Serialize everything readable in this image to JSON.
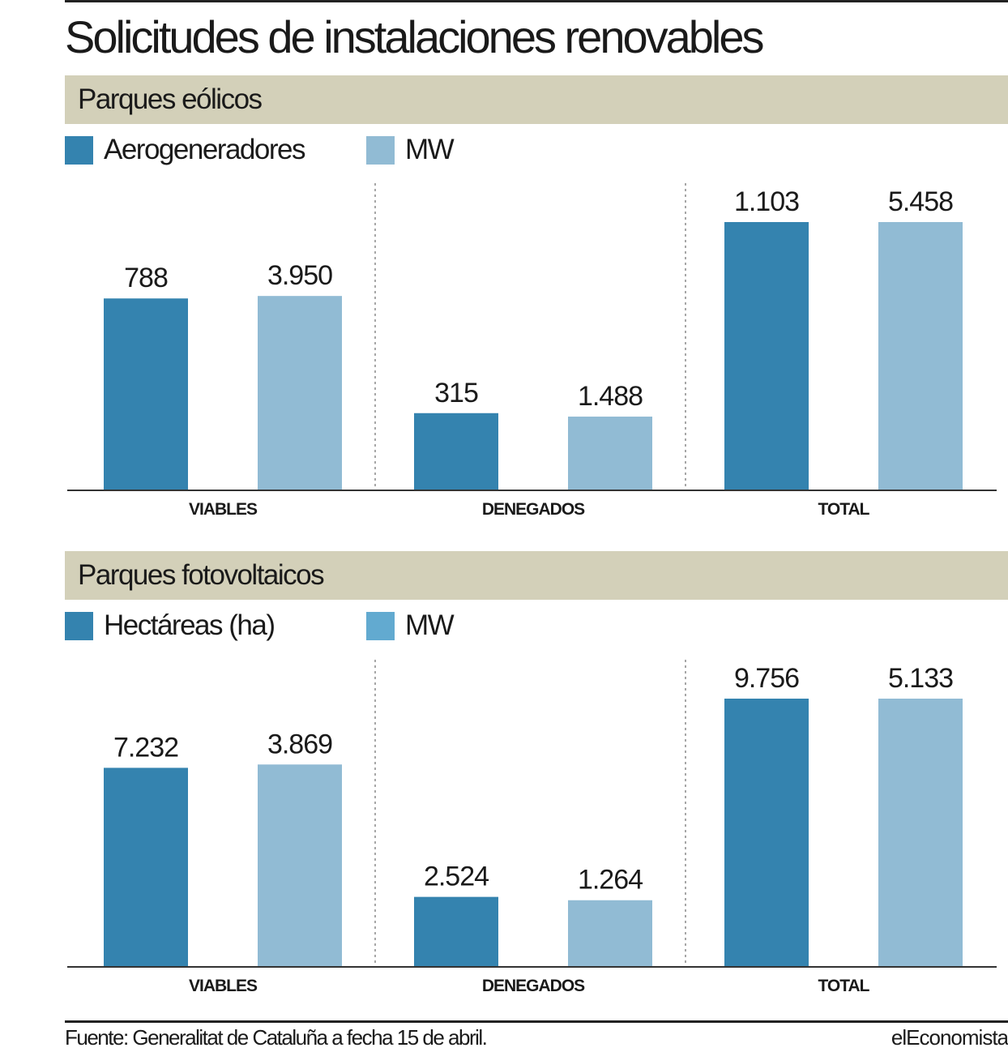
{
  "title": "Solicitudes de instalaciones renovables",
  "source": "Fuente: Generalitat de Cataluña a fecha 15 de abril.",
  "brand": "elEconomista",
  "colors": {
    "dark_bar": "#3483af",
    "light_bar": "#91bbd4",
    "band": "#d3d0b9",
    "legend_mw_photovoltaic": "#62aad0"
  },
  "chart_data": [
    {
      "type": "bar",
      "title": "Parques eólicos",
      "categories": [
        "VIABLES",
        "DENEGADOS",
        "TOTAL"
      ],
      "series": [
        {
          "name": "Aerogeneradores",
          "values": [
            788,
            315,
            1103
          ],
          "labels": [
            "788",
            "315",
            "1.103"
          ]
        },
        {
          "name": "MW",
          "values": [
            3950,
            1488,
            5458
          ],
          "labels": [
            "3.950",
            "1.488",
            "5.458"
          ]
        }
      ],
      "independent_scale_per_series": true,
      "grid": false,
      "legend": "top-left"
    },
    {
      "type": "bar",
      "title": "Parques fotovoltaicos",
      "categories": [
        "VIABLES",
        "DENEGADOS",
        "TOTAL"
      ],
      "series": [
        {
          "name": "Hectáreas (ha)",
          "values": [
            7232,
            2524,
            9756
          ],
          "labels": [
            "7.232",
            "2.524",
            "9.756"
          ]
        },
        {
          "name": "MW",
          "values": [
            3869,
            1264,
            5133
          ],
          "labels": [
            "3.869",
            "1.264",
            "5.133"
          ]
        }
      ],
      "independent_scale_per_series": true,
      "grid": false,
      "legend": "top-left"
    }
  ]
}
